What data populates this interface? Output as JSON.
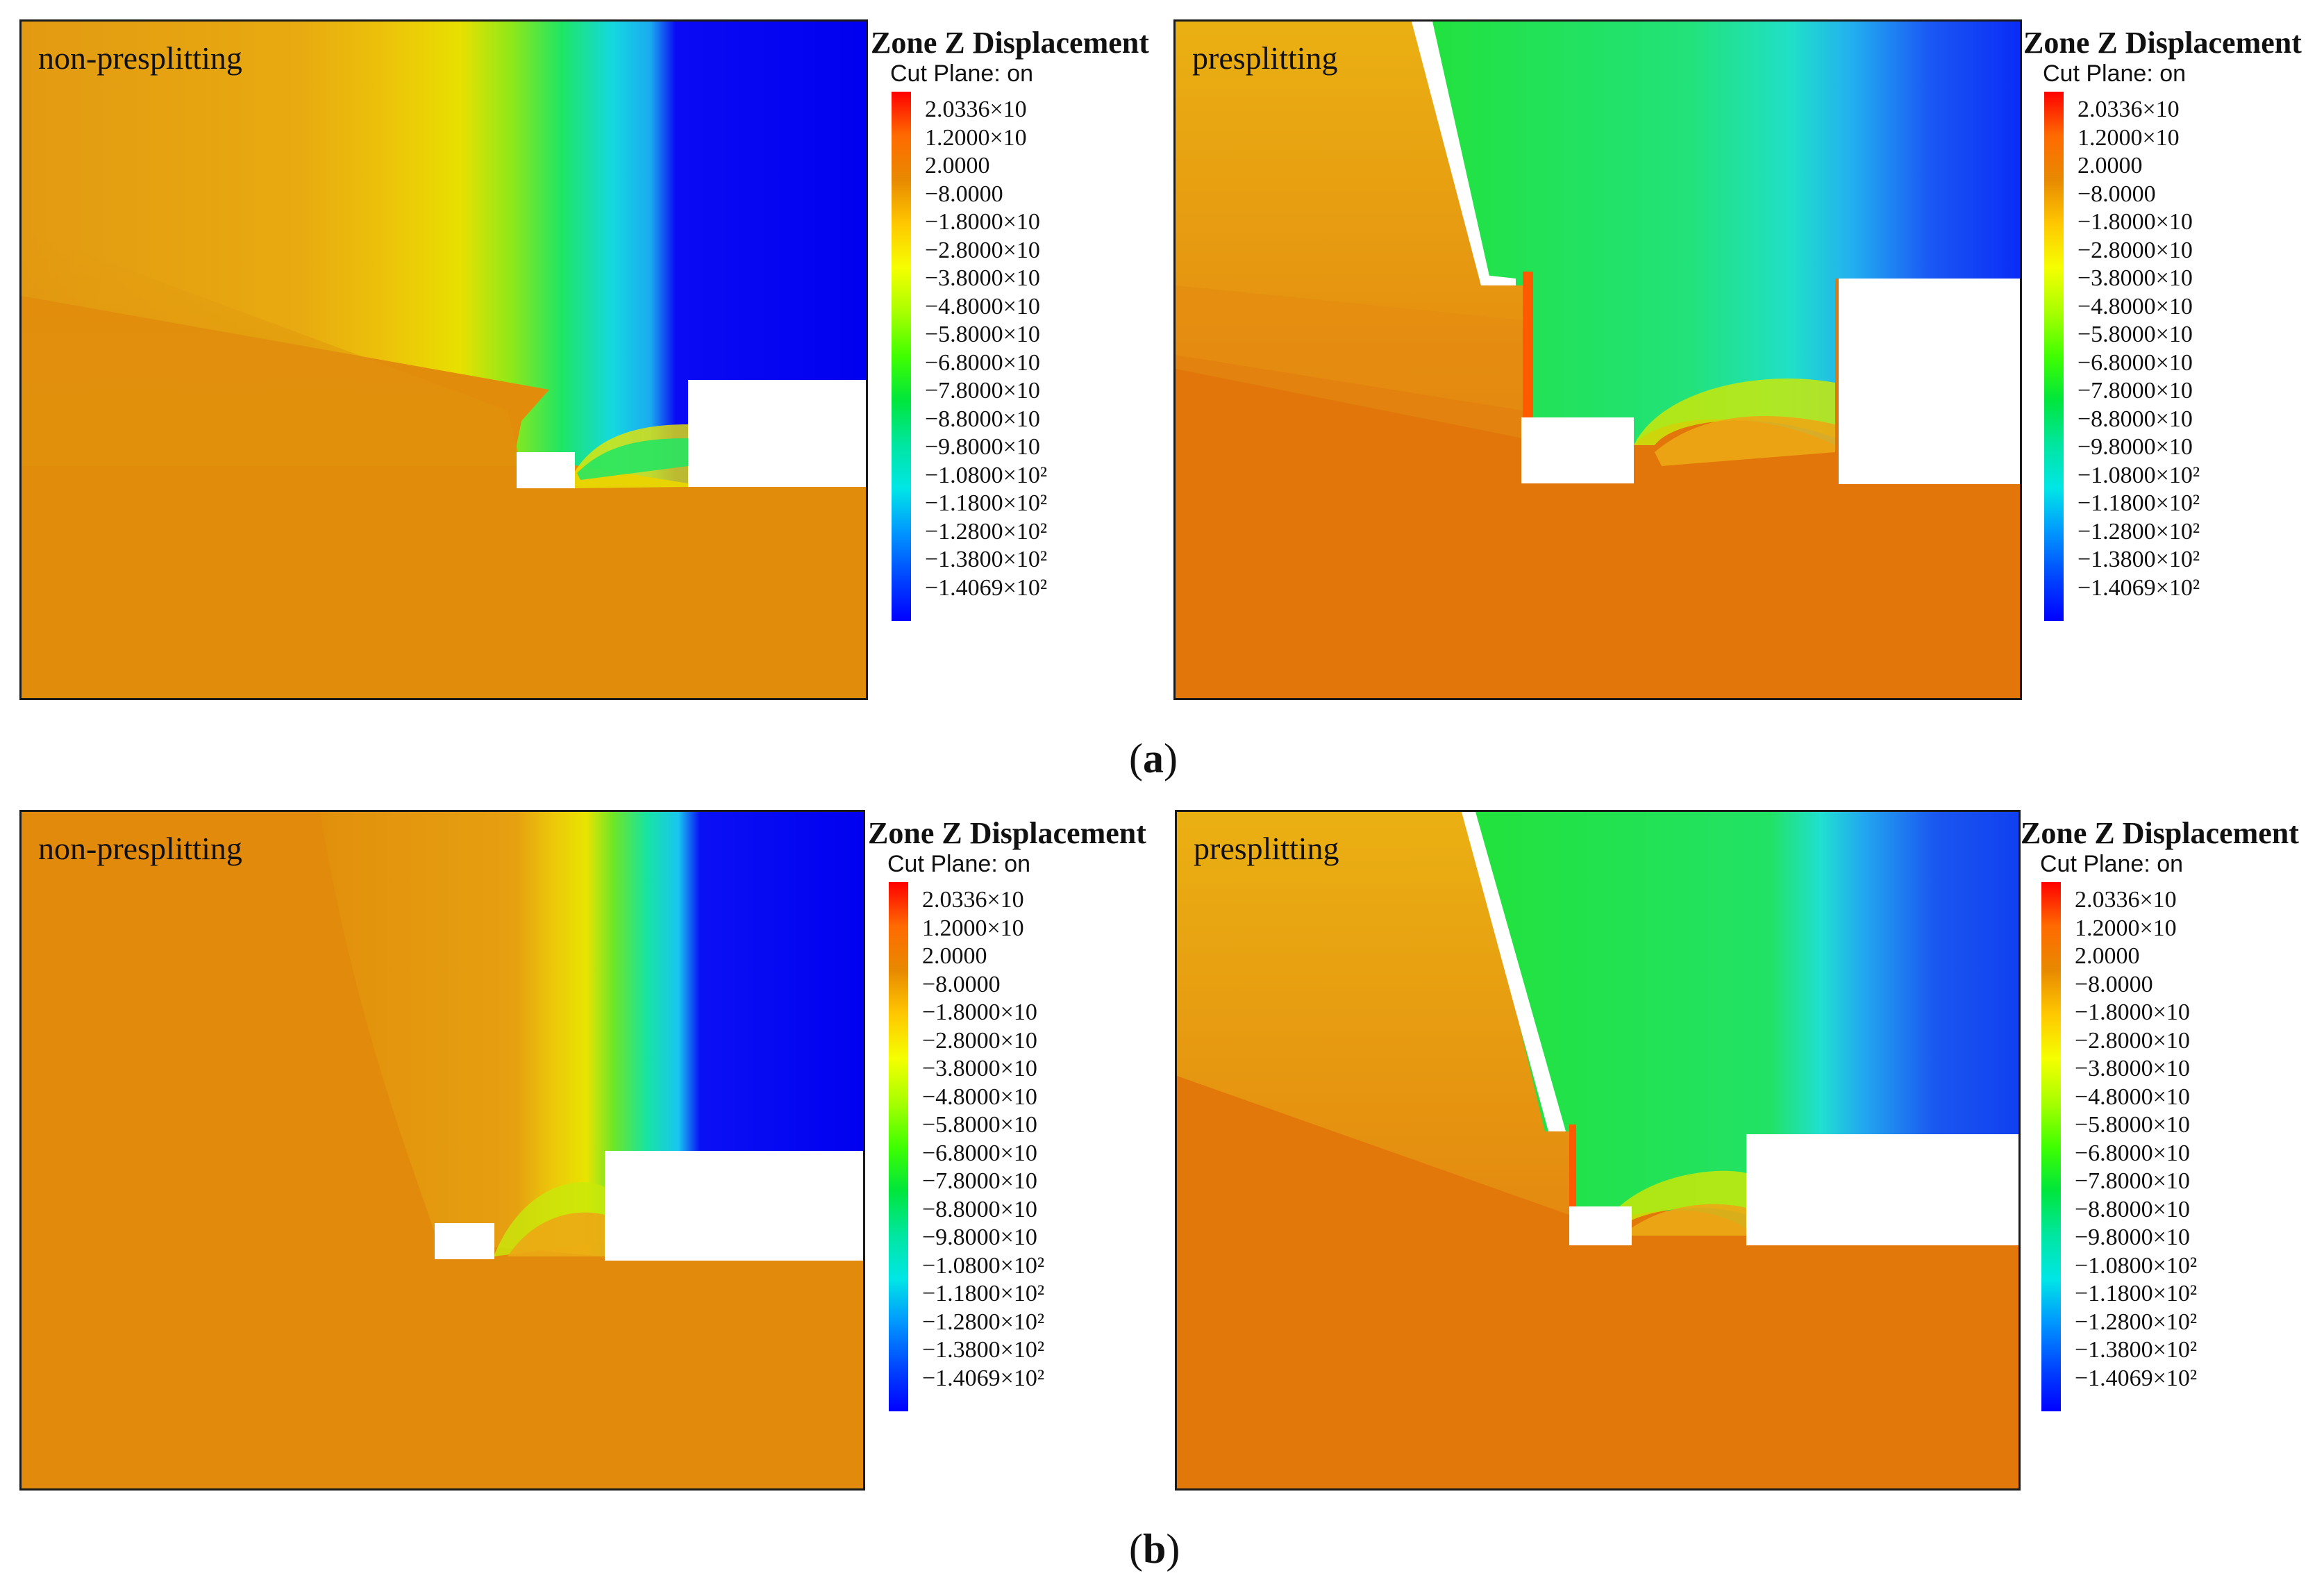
{
  "legend": {
    "title": "Zone Z Displacement",
    "subtitle": "Cut Plane: on",
    "ticks": [
      "2.0336×10",
      "1.2000×10",
      "2.0000",
      "−8.0000",
      "−1.8000×10",
      "−2.8000×10",
      "−3.8000×10",
      "−4.8000×10",
      "−5.8000×10",
      "−6.8000×10",
      "−7.8000×10",
      "−8.8000×10",
      "−9.8000×10",
      "−1.0800×10²",
      "−1.1800×10²",
      "−1.2800×10²",
      "−1.3800×10²",
      "−1.4069×10²"
    ],
    "colors": [
      "#ff0000",
      "#ff6a00",
      "#e88a00",
      "#ffc800",
      "#f5ff00",
      "#a8ff00",
      "#40ff00",
      "#00e63c",
      "#00e6a0",
      "#00e6e6",
      "#0096ff",
      "#0046ff",
      "#0000ff"
    ]
  },
  "figure": {
    "label_a": "a",
    "label_b": "b",
    "panels": [
      {
        "id": "a1",
        "case": "non-presplitting"
      },
      {
        "id": "a2",
        "case": "presplitting"
      },
      {
        "id": "b1",
        "case": "non-presplitting"
      },
      {
        "id": "b2",
        "case": "presplitting"
      }
    ]
  }
}
